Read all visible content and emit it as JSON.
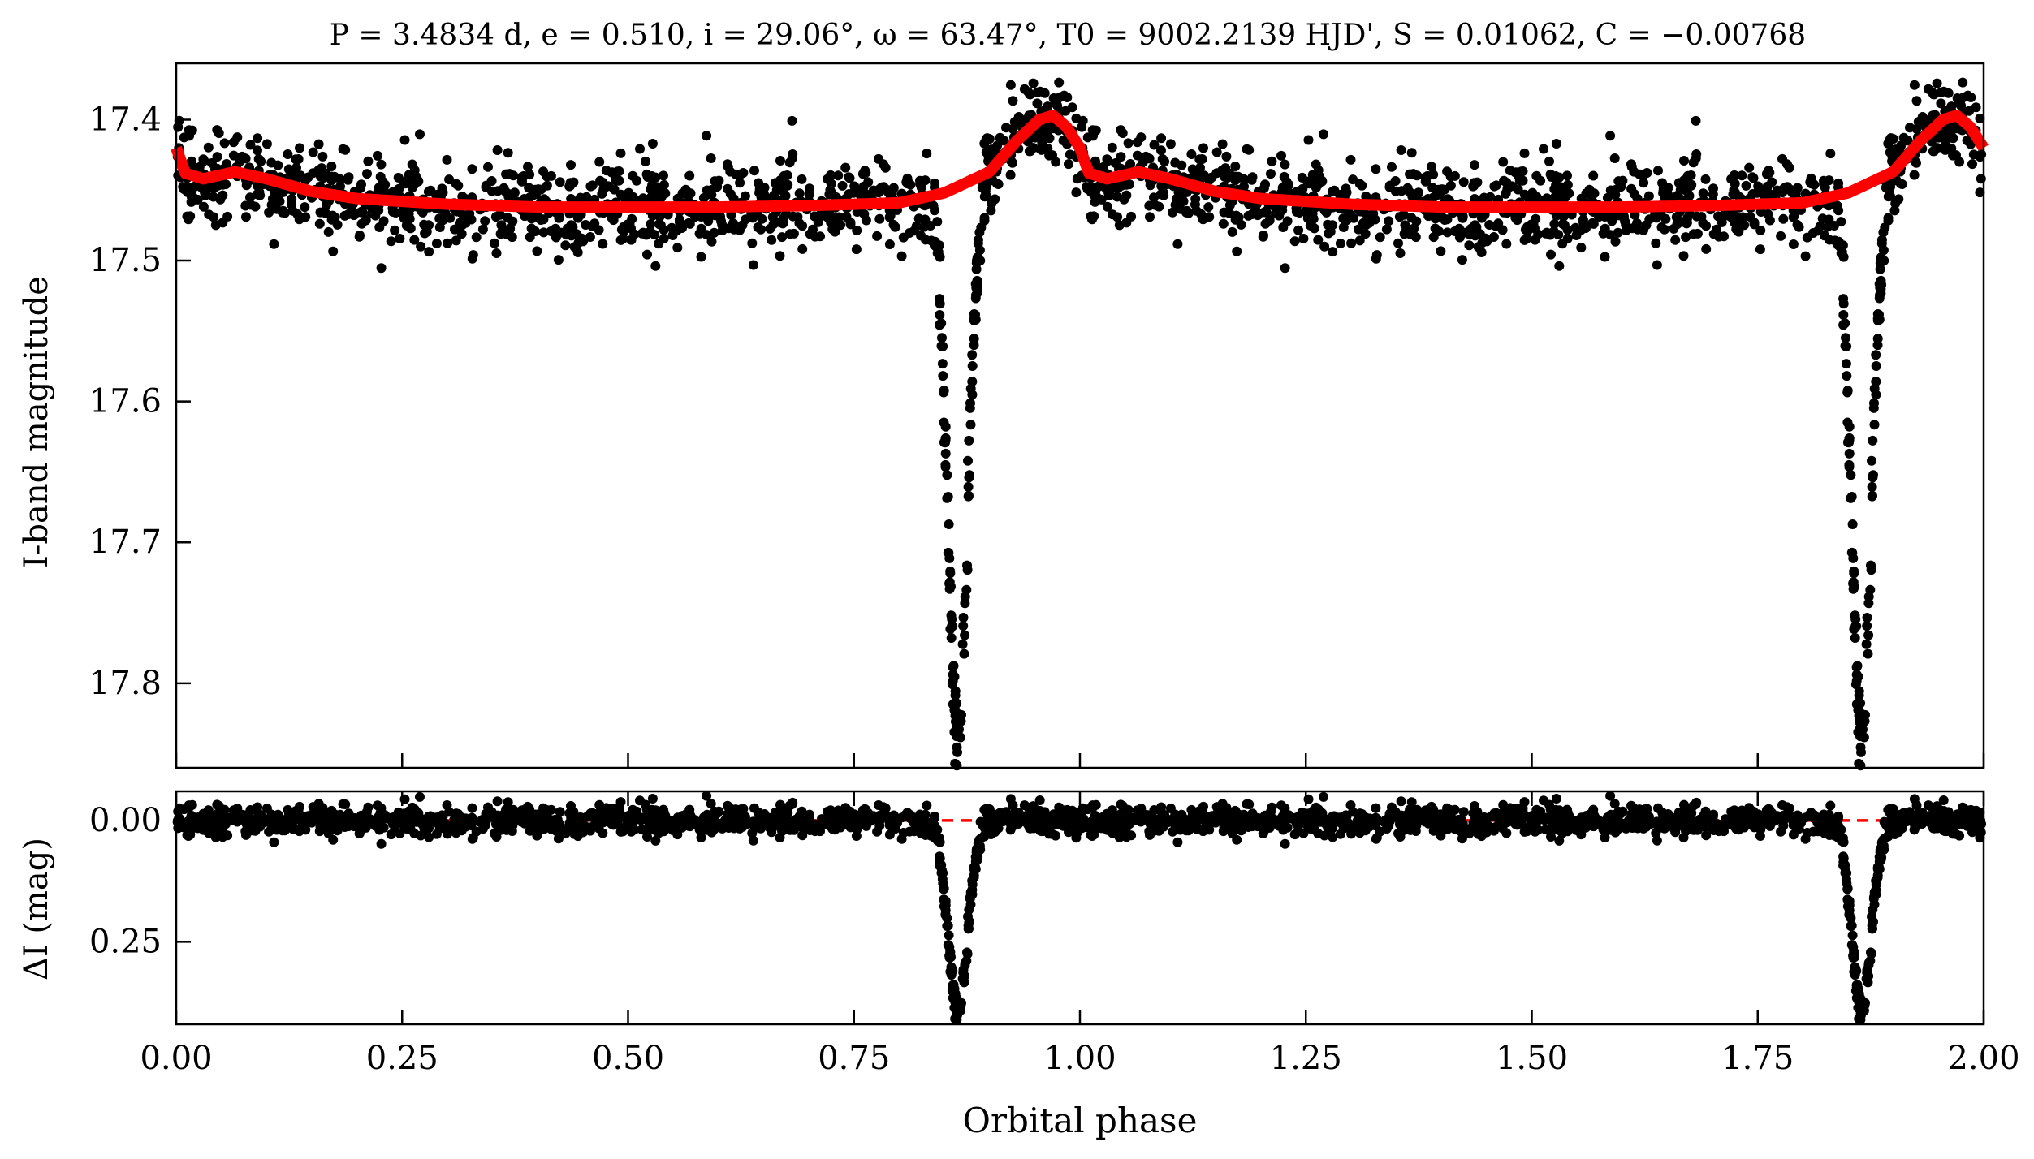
{
  "chart_data": [
    {
      "panel": "top",
      "type": "scatter",
      "title": "P = 3.4834 d, e = 0.510, i = 29.06°, ω = 63.47°, T0 = 9002.2139 HJD', S = 0.01062, C = −0.00768",
      "xlabel": "",
      "ylabel": "I-band magnitude",
      "xlim": [
        0,
        2
      ],
      "ylim": [
        17.86,
        17.36
      ],
      "y_inverted": true,
      "yticks": [
        "17.4",
        "17.5",
        "17.6",
        "17.7",
        "17.8"
      ],
      "grid": false,
      "series": [
        {
          "role": "observations",
          "color": "#000000",
          "description_of_shape": "phase-folded photometry repeated over two cycles",
          "baseline": 17.46,
          "scatter": 0.015,
          "eclipse_phase": 0.865,
          "eclipse_depth_mag": 0.39,
          "brightening_phase": 0.97,
          "brightening_peak_mag": 17.395
        },
        {
          "role": "model",
          "color": "#ff0000",
          "points": [
            [
              0.0,
              17.42
            ],
            [
              0.01,
              17.438
            ],
            [
              0.03,
              17.442
            ],
            [
              0.065,
              17.437
            ],
            [
              0.1,
              17.442
            ],
            [
              0.15,
              17.451
            ],
            [
              0.2,
              17.456
            ],
            [
              0.3,
              17.46
            ],
            [
              0.4,
              17.462
            ],
            [
              0.5,
              17.462
            ],
            [
              0.6,
              17.462
            ],
            [
              0.7,
              17.461
            ],
            [
              0.8,
              17.459
            ],
            [
              0.85,
              17.452
            ],
            [
              0.9,
              17.437
            ],
            [
              0.93,
              17.415
            ],
            [
              0.955,
              17.4
            ],
            [
              0.97,
              17.397
            ],
            [
              0.985,
              17.405
            ],
            [
              1.0,
              17.42
            ],
            [
              1.01,
              17.438
            ],
            [
              1.03,
              17.442
            ],
            [
              1.065,
              17.437
            ],
            [
              1.1,
              17.442
            ],
            [
              1.15,
              17.451
            ],
            [
              1.2,
              17.456
            ],
            [
              1.3,
              17.46
            ],
            [
              1.4,
              17.462
            ],
            [
              1.5,
              17.462
            ],
            [
              1.6,
              17.462
            ],
            [
              1.7,
              17.461
            ],
            [
              1.8,
              17.459
            ],
            [
              1.85,
              17.452
            ],
            [
              1.9,
              17.437
            ],
            [
              1.93,
              17.415
            ],
            [
              1.955,
              17.4
            ],
            [
              1.97,
              17.397
            ],
            [
              1.985,
              17.405
            ],
            [
              2.0,
              17.42
            ]
          ]
        }
      ]
    },
    {
      "panel": "bottom",
      "type": "scatter",
      "xlabel": "Orbital phase",
      "ylabel": "ΔI (mag)",
      "xlim": [
        0,
        2
      ],
      "ylim": [
        0.42,
        -0.06
      ],
      "y_inverted": true,
      "yticks": [
        "0.00",
        "0.25"
      ],
      "xticks": [
        "0.00",
        "0.25",
        "0.50",
        "0.75",
        "1.00",
        "1.25",
        "1.50",
        "1.75",
        "2.00"
      ],
      "reference_line": {
        "y": 0,
        "color": "#ff0000",
        "style": "dashed"
      },
      "series": [
        {
          "role": "residuals",
          "color": "#000000",
          "eclipse_phase": 0.865,
          "eclipse_depth_mag": 0.39
        }
      ]
    }
  ]
}
